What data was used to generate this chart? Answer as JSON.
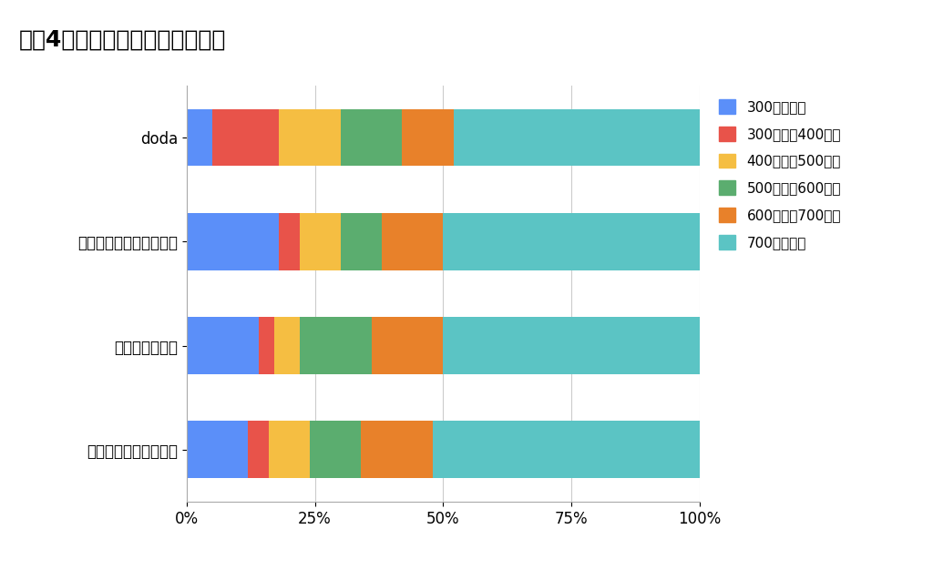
{
  "title": "大手4社の求人の目安年収帯割合",
  "categories": [
    "doda",
    "リクルートエージェント",
    "パソナキャリア",
    "マイナビエージェント"
  ],
  "legend_labels": [
    "300万円以下",
    "300万円～400万円",
    "400万円～500万円",
    "500万円～600万円",
    "600万円～700万円",
    "700万円以上"
  ],
  "colors": [
    "#5B8FF9",
    "#E8534A",
    "#F5BE42",
    "#5BAD6F",
    "#E8812A",
    "#5BC4C4"
  ],
  "data": [
    [
      5,
      13,
      12,
      12,
      10,
      48
    ],
    [
      18,
      4,
      8,
      8,
      12,
      50
    ],
    [
      14,
      3,
      5,
      14,
      14,
      50
    ],
    [
      12,
      4,
      8,
      10,
      14,
      52
    ]
  ],
  "background_color": "#ffffff",
  "title_fontsize": 18,
  "tick_fontsize": 12,
  "legend_fontsize": 11,
  "bar_height": 0.55
}
